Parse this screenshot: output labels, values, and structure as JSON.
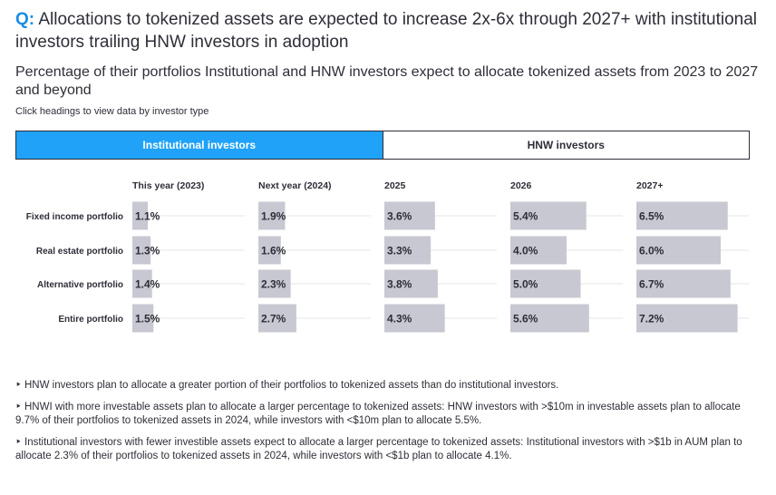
{
  "question": {
    "prefix": "Q:",
    "text": "Allocations to tokenized assets are expected to increase 2x-6x through 2027+ with institutional investors trailing HNW investors in adoption"
  },
  "subtitle": "Percentage of their portfolios Institutional and HNW investors expect to allocate tokenized assets from 2023 to 2027 and beyond",
  "hint": "Click headings to view data by investor type",
  "tabs": [
    {
      "label": "Institutional investors",
      "active": true
    },
    {
      "label": "HNW investors",
      "active": false
    }
  ],
  "colors": {
    "accent": "#1fa2f7",
    "bar": "#c8c8d2",
    "text": "#2e2e38",
    "grid": "#e6e6ea"
  },
  "chart_data": {
    "type": "bar",
    "orientation": "horizontal",
    "layout": "small-multiples",
    "categories": [
      "Fixed income portfolio",
      "Real estate portfolio",
      "Alternative portfolio",
      "Entire portfolio"
    ],
    "series": [
      {
        "name": "This year (2023)",
        "values": [
          1.1,
          1.3,
          1.4,
          1.5
        ],
        "labels": [
          "1.1%",
          "1.3%",
          "1.4%",
          "1.5%"
        ]
      },
      {
        "name": "Next year (2024)",
        "values": [
          1.9,
          1.6,
          2.3,
          2.7
        ],
        "labels": [
          "1.9%",
          "1.6%",
          "2.3%",
          "2.7%"
        ]
      },
      {
        "name": "2025",
        "values": [
          3.6,
          3.3,
          3.8,
          4.3
        ],
        "labels": [
          "3.6%",
          "3.3%",
          "3.8%",
          "4.3%"
        ]
      },
      {
        "name": "2026",
        "values": [
          5.4,
          4.0,
          5.0,
          5.6
        ],
        "labels": [
          "5.4%",
          "4.0%",
          "5.0%",
          "5.6%"
        ]
      },
      {
        "name": "2027+",
        "values": [
          6.5,
          6.0,
          6.7,
          7.2
        ],
        "labels": [
          "6.5%",
          "6.0%",
          "6.7%",
          "7.2%"
        ]
      }
    ],
    "xlim": [
      0,
      8
    ],
    "unit": "%",
    "grid": false
  },
  "bullets": [
    "HNW investors plan to allocate a greater portion of their portfolios to tokenized assets than do institutional investors.",
    "HNWI with more investable assets plan to allocate a larger percentage to tokenized assets: HNW investors with >$10m in investable assets plan to allocate 9.7% of their portfolios to tokenized assets in 2024, while investors with <$10m plan to allocate 5.5%.",
    "Institutional investors with fewer investible assets expect to allocate a larger percentage to tokenized assets: Institutional investors with >$1b in AUM plan to allocate 2.3% of their portfolios to tokenized assets in 2024, while investors with <$1b plan to allocate 4.1%."
  ],
  "bullet_marker": "‣"
}
